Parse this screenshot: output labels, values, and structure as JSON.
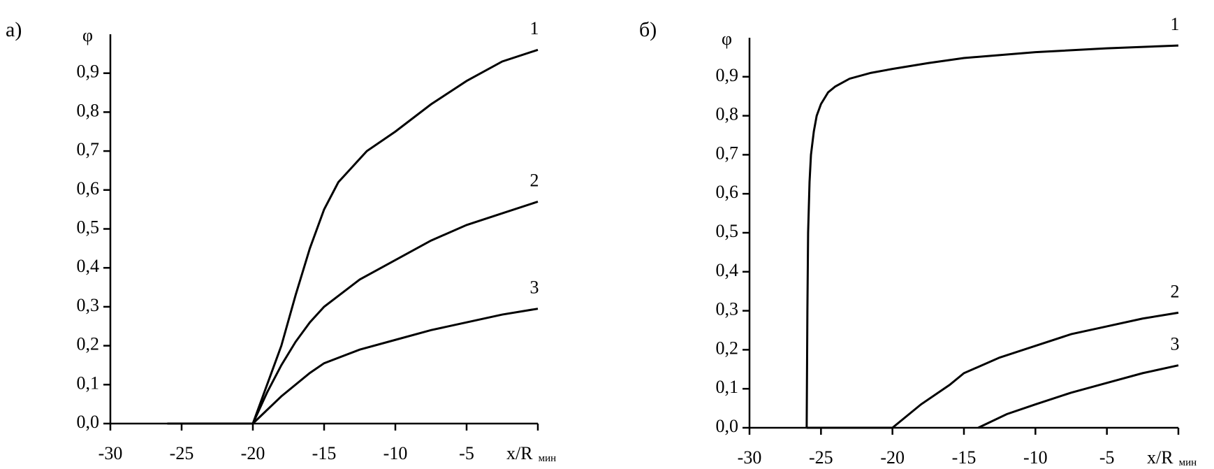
{
  "chart_data": [
    {
      "type": "line",
      "panel_label": "а)",
      "y_label": "φ",
      "x_label": "x/R",
      "x_label_sub": "мин",
      "xlim": [
        -30,
        0
      ],
      "ylim": [
        0,
        1
      ],
      "xticks": [
        -30,
        -25,
        -20,
        -15,
        -10,
        -5
      ],
      "yticks": [
        {
          "value": 0,
          "label": "0,0"
        },
        {
          "value": 0.1,
          "label": "0,1"
        },
        {
          "value": 0.2,
          "label": "0,2"
        },
        {
          "value": 0.3,
          "label": "0,3"
        },
        {
          "value": 0.4,
          "label": "0,4"
        },
        {
          "value": 0.5,
          "label": "0,5"
        },
        {
          "value": 0.6,
          "label": "0,6"
        },
        {
          "value": 0.7,
          "label": "0,7"
        },
        {
          "value": 0.8,
          "label": "0,8"
        },
        {
          "value": 0.9,
          "label": "0,9"
        }
      ],
      "series": [
        {
          "name": "1",
          "color": "#000000",
          "x": [
            -26,
            -20,
            -19,
            -18,
            -17,
            -16,
            -15,
            -14,
            -12,
            -10,
            -7.5,
            -5,
            -2.5,
            0
          ],
          "values": [
            0,
            0,
            0.1,
            0.2,
            0.33,
            0.45,
            0.55,
            0.62,
            0.7,
            0.75,
            0.82,
            0.88,
            0.93,
            0.96
          ]
        },
        {
          "name": "2",
          "color": "#000000",
          "x": [
            -26,
            -20,
            -19,
            -18,
            -17,
            -16,
            -15,
            -12.5,
            -10,
            -7.5,
            -5,
            -2.5,
            0
          ],
          "values": [
            0,
            0,
            0.08,
            0.15,
            0.21,
            0.26,
            0.3,
            0.37,
            0.42,
            0.47,
            0.51,
            0.54,
            0.57
          ]
        },
        {
          "name": "3",
          "color": "#000000",
          "x": [
            -26,
            -20,
            -18,
            -16,
            -15,
            -12.5,
            -10,
            -7.5,
            -5,
            -2.5,
            0
          ],
          "values": [
            0,
            0,
            0.07,
            0.13,
            0.155,
            0.19,
            0.215,
            0.24,
            0.26,
            0.28,
            0.295
          ]
        }
      ]
    },
    {
      "type": "line",
      "panel_label": "б)",
      "y_label": "φ",
      "x_label": "x/R",
      "x_label_sub": "мин",
      "xlim": [
        -30,
        0
      ],
      "ylim": [
        0,
        1
      ],
      "xticks": [
        -30,
        -25,
        -20,
        -15,
        -10,
        -5
      ],
      "yticks": [
        {
          "value": 0,
          "label": "0,0"
        },
        {
          "value": 0.1,
          "label": "0,1"
        },
        {
          "value": 0.2,
          "label": "0,2"
        },
        {
          "value": 0.3,
          "label": "0,3"
        },
        {
          "value": 0.4,
          "label": "0,4"
        },
        {
          "value": 0.5,
          "label": "0,5"
        },
        {
          "value": 0.6,
          "label": "0,6"
        },
        {
          "value": 0.7,
          "label": "0,7"
        },
        {
          "value": 0.8,
          "label": "0,8"
        },
        {
          "value": 0.9,
          "label": "0,9"
        }
      ],
      "series": [
        {
          "name": "1",
          "color": "#000000",
          "x": [
            -26,
            -25.95,
            -25.9,
            -25.8,
            -25.7,
            -25.5,
            -25.3,
            -25,
            -24.5,
            -24,
            -23,
            -21.5,
            -20,
            -17.5,
            -15,
            -10,
            -5,
            0
          ],
          "values": [
            0,
            0.3,
            0.5,
            0.63,
            0.7,
            0.76,
            0.8,
            0.83,
            0.86,
            0.875,
            0.895,
            0.91,
            0.92,
            0.935,
            0.948,
            0.963,
            0.973,
            0.98
          ]
        },
        {
          "name": "2",
          "color": "#000000",
          "x": [
            -26,
            -20,
            -18,
            -16,
            -15,
            -12.5,
            -10,
            -7.5,
            -5,
            -2.5,
            0
          ],
          "values": [
            0,
            0,
            0.06,
            0.11,
            0.14,
            0.18,
            0.21,
            0.24,
            0.26,
            0.28,
            0.295
          ]
        },
        {
          "name": "3",
          "color": "#000000",
          "x": [
            -14,
            -12,
            -10,
            -7.5,
            -5,
            -2.5,
            0
          ],
          "values": [
            0,
            0.035,
            0.06,
            0.09,
            0.115,
            0.14,
            0.16
          ]
        }
      ]
    }
  ]
}
